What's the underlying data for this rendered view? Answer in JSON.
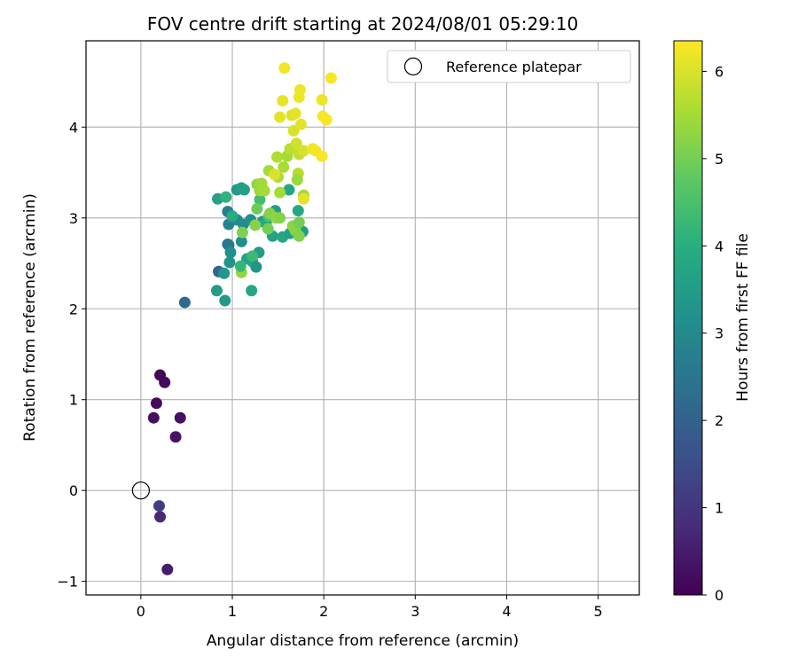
{
  "chart_data": {
    "type": "scatter",
    "title": "FOV centre drift starting at 2024/08/01 05:29:10",
    "xlabel": "Angular distance from reference (arcmin)",
    "ylabel": "Rotation from reference (arcmin)",
    "xlim": [
      -0.6,
      5.45
    ],
    "ylim": [
      -1.15,
      4.95
    ],
    "xticks": [
      0,
      1,
      2,
      3,
      4,
      5
    ],
    "yticks": [
      -1,
      0,
      1,
      2,
      3,
      4
    ],
    "grid": true,
    "legend": {
      "position": "top-right",
      "entries": [
        "Reference platepar"
      ]
    },
    "reference_point": {
      "x": 0,
      "y": 0,
      "label": "Reference platepar"
    },
    "colorbar": {
      "label": "Hours from first FF file",
      "min": 0,
      "max": 6.35,
      "ticks": [
        0,
        1,
        2,
        3,
        4,
        5,
        6
      ],
      "colormap": "viridis"
    },
    "points": [
      {
        "x": 0.21,
        "y": 1.27,
        "h": 0.1
      },
      {
        "x": 0.26,
        "y": 1.19,
        "h": 0.15
      },
      {
        "x": 0.17,
        "y": 0.96,
        "h": 0.2
      },
      {
        "x": 0.14,
        "y": 0.8,
        "h": 0.25
      },
      {
        "x": 0.43,
        "y": 0.8,
        "h": 0.3
      },
      {
        "x": 0.38,
        "y": 0.59,
        "h": 0.35
      },
      {
        "x": 0.29,
        "y": -0.87,
        "h": 0.5
      },
      {
        "x": 0.21,
        "y": -0.29,
        "h": 0.75
      },
      {
        "x": 0.2,
        "y": -0.17,
        "h": 1.2
      },
      {
        "x": 0.48,
        "y": 2.07,
        "h": 2.2
      },
      {
        "x": 0.85,
        "y": 2.41,
        "h": 2.1
      },
      {
        "x": 0.96,
        "y": 2.7,
        "h": 2.3
      },
      {
        "x": 0.95,
        "y": 2.71,
        "h": 2.6
      },
      {
        "x": 0.95,
        "y": 3.07,
        "h": 2.75
      },
      {
        "x": 0.96,
        "y": 2.93,
        "h": 2.85
      },
      {
        "x": 1.05,
        "y": 2.98,
        "h": 3.0
      },
      {
        "x": 1.12,
        "y": 2.93,
        "h": 3.1
      },
      {
        "x": 1.1,
        "y": 2.74,
        "h": 3.15
      },
      {
        "x": 0.98,
        "y": 2.62,
        "h": 3.2
      },
      {
        "x": 0.97,
        "y": 2.51,
        "h": 3.3
      },
      {
        "x": 0.91,
        "y": 2.39,
        "h": 3.35
      },
      {
        "x": 0.83,
        "y": 2.2,
        "h": 3.5
      },
      {
        "x": 0.92,
        "y": 2.09,
        "h": 3.45
      },
      {
        "x": 1.05,
        "y": 3.31,
        "h": 3.4
      },
      {
        "x": 1.1,
        "y": 3.33,
        "h": 3.55
      },
      {
        "x": 1.13,
        "y": 3.31,
        "h": 3.6
      },
      {
        "x": 1.16,
        "y": 2.55,
        "h": 3.7
      },
      {
        "x": 1.22,
        "y": 2.52,
        "h": 3.75
      },
      {
        "x": 1.26,
        "y": 2.46,
        "h": 3.3
      },
      {
        "x": 1.21,
        "y": 2.2,
        "h": 3.8
      },
      {
        "x": 1.29,
        "y": 2.62,
        "h": 3.5
      },
      {
        "x": 1.2,
        "y": 2.98,
        "h": 3.2
      },
      {
        "x": 1.33,
        "y": 2.96,
        "h": 3.4
      },
      {
        "x": 1.37,
        "y": 2.95,
        "h": 3.9
      },
      {
        "x": 1.44,
        "y": 2.8,
        "h": 3.65
      },
      {
        "x": 1.47,
        "y": 3.08,
        "h": 3.5
      },
      {
        "x": 1.55,
        "y": 2.79,
        "h": 3.8
      },
      {
        "x": 1.63,
        "y": 2.83,
        "h": 3.6
      },
      {
        "x": 1.68,
        "y": 2.88,
        "h": 3.7
      },
      {
        "x": 1.72,
        "y": 3.08,
        "h": 3.85
      },
      {
        "x": 1.77,
        "y": 2.85,
        "h": 3.5
      },
      {
        "x": 1.62,
        "y": 3.31,
        "h": 3.75
      },
      {
        "x": 0.84,
        "y": 3.21,
        "h": 3.6
      },
      {
        "x": 0.93,
        "y": 3.23,
        "h": 4.1
      },
      {
        "x": 1.0,
        "y": 3.02,
        "h": 3.95
      },
      {
        "x": 1.22,
        "y": 2.58,
        "h": 4.3
      },
      {
        "x": 1.3,
        "y": 3.2,
        "h": 4.4
      },
      {
        "x": 1.4,
        "y": 3.02,
        "h": 4.6
      },
      {
        "x": 1.1,
        "y": 2.4,
        "h": 5.3
      },
      {
        "x": 1.09,
        "y": 2.47,
        "h": 4.2
      },
      {
        "x": 1.11,
        "y": 2.84,
        "h": 5.1
      },
      {
        "x": 1.25,
        "y": 2.92,
        "h": 5.2
      },
      {
        "x": 1.39,
        "y": 2.88,
        "h": 5.0
      },
      {
        "x": 1.27,
        "y": 3.1,
        "h": 4.9
      },
      {
        "x": 1.41,
        "y": 3.05,
        "h": 5.2
      },
      {
        "x": 1.48,
        "y": 3.0,
        "h": 5.3
      },
      {
        "x": 1.52,
        "y": 3.0,
        "h": 5.2
      },
      {
        "x": 1.66,
        "y": 2.91,
        "h": 5.25
      },
      {
        "x": 1.69,
        "y": 2.86,
        "h": 5.2
      },
      {
        "x": 1.73,
        "y": 2.8,
        "h": 5.15
      },
      {
        "x": 1.73,
        "y": 2.95,
        "h": 5.0
      },
      {
        "x": 1.27,
        "y": 3.37,
        "h": 5.3
      },
      {
        "x": 1.3,
        "y": 3.3,
        "h": 5.4
      },
      {
        "x": 1.32,
        "y": 3.38,
        "h": 5.45
      },
      {
        "x": 1.35,
        "y": 3.3,
        "h": 5.5
      },
      {
        "x": 1.4,
        "y": 3.52,
        "h": 5.5
      },
      {
        "x": 1.5,
        "y": 3.45,
        "h": 5.6
      },
      {
        "x": 1.52,
        "y": 3.28,
        "h": 5.5
      },
      {
        "x": 1.56,
        "y": 3.56,
        "h": 5.55
      },
      {
        "x": 1.49,
        "y": 3.67,
        "h": 5.6
      },
      {
        "x": 1.6,
        "y": 3.68,
        "h": 5.5
      },
      {
        "x": 1.63,
        "y": 3.76,
        "h": 5.7
      },
      {
        "x": 1.72,
        "y": 3.49,
        "h": 5.65
      },
      {
        "x": 1.71,
        "y": 3.42,
        "h": 5.4
      },
      {
        "x": 1.7,
        "y": 3.82,
        "h": 5.9
      },
      {
        "x": 1.73,
        "y": 3.7,
        "h": 5.8
      },
      {
        "x": 1.78,
        "y": 3.74,
        "h": 6.0
      },
      {
        "x": 1.78,
        "y": 3.25,
        "h": 5.5
      },
      {
        "x": 1.78,
        "y": 3.21,
        "h": 6.1
      },
      {
        "x": 1.46,
        "y": 3.48,
        "h": 6.0
      },
      {
        "x": 1.67,
        "y": 3.96,
        "h": 6.0
      },
      {
        "x": 1.75,
        "y": 4.03,
        "h": 6.1
      },
      {
        "x": 1.65,
        "y": 4.13,
        "h": 6.05
      },
      {
        "x": 1.69,
        "y": 4.15,
        "h": 6.1
      },
      {
        "x": 1.52,
        "y": 4.11,
        "h": 6.1
      },
      {
        "x": 1.55,
        "y": 4.29,
        "h": 6.15
      },
      {
        "x": 1.73,
        "y": 4.33,
        "h": 6.2
      },
      {
        "x": 1.74,
        "y": 4.41,
        "h": 6.2
      },
      {
        "x": 1.57,
        "y": 4.65,
        "h": 6.25
      },
      {
        "x": 2.08,
        "y": 4.54,
        "h": 6.3
      },
      {
        "x": 1.98,
        "y": 4.3,
        "h": 6.2
      },
      {
        "x": 1.99,
        "y": 4.12,
        "h": 6.3
      },
      {
        "x": 2.03,
        "y": 4.08,
        "h": 6.3
      },
      {
        "x": 1.88,
        "y": 3.76,
        "h": 6.2
      },
      {
        "x": 1.91,
        "y": 3.74,
        "h": 6.25
      },
      {
        "x": 1.98,
        "y": 3.68,
        "h": 6.3
      }
    ]
  }
}
